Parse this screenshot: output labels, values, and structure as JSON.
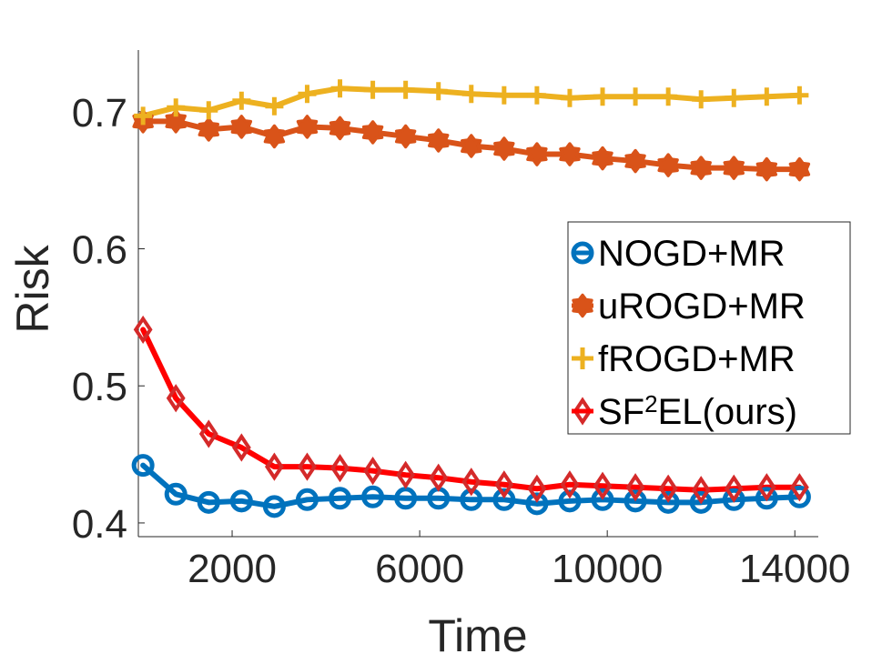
{
  "chart_data": {
    "type": "line",
    "title": "",
    "xlabel": "Time",
    "ylabel": "Risk",
    "xlim": [
      0,
      14500
    ],
    "ylim": [
      0.39,
      0.745
    ],
    "xticks": [
      2000,
      6000,
      10000,
      14000
    ],
    "xtick_labels": [
      "2000",
      "6000",
      "10000",
      "14000"
    ],
    "yticks": [
      0.4,
      0.5,
      0.6,
      0.7
    ],
    "ytick_labels": [
      "0.4",
      "0.5",
      "0.6",
      "0.7"
    ],
    "grid": false,
    "legend_position": "right",
    "x": [
      100,
      800,
      1500,
      2200,
      2900,
      3600,
      4300,
      5000,
      5700,
      6400,
      7100,
      7800,
      8500,
      9200,
      9900,
      10600,
      11300,
      12000,
      12700,
      13400,
      14100
    ],
    "series": [
      {
        "name": "NOGD+MR",
        "color": "#0072BD",
        "marker": "circle",
        "values": [
          0.442,
          0.421,
          0.415,
          0.416,
          0.412,
          0.417,
          0.418,
          0.419,
          0.418,
          0.418,
          0.417,
          0.417,
          0.414,
          0.416,
          0.417,
          0.416,
          0.415,
          0.415,
          0.417,
          0.418,
          0.419
        ]
      },
      {
        "name": "uROGD+MR",
        "color": "#D95319",
        "marker": "hexagram",
        "values": [
          0.693,
          0.693,
          0.687,
          0.689,
          0.682,
          0.689,
          0.688,
          0.685,
          0.682,
          0.679,
          0.675,
          0.673,
          0.669,
          0.669,
          0.666,
          0.664,
          0.661,
          0.659,
          0.659,
          0.658,
          0.658
        ]
      },
      {
        "name": "fROGD+MR",
        "color": "#EDB120",
        "marker": "plus",
        "values": [
          0.697,
          0.703,
          0.701,
          0.708,
          0.704,
          0.713,
          0.717,
          0.716,
          0.716,
          0.715,
          0.713,
          0.712,
          0.712,
          0.71,
          0.711,
          0.711,
          0.711,
          0.709,
          0.71,
          0.711,
          0.712
        ]
      },
      {
        "name_main": "SF",
        "name_sup": "2",
        "name_rest": "EL(ours)",
        "color": "#FF0000",
        "edge_color": "#D42A2A",
        "marker": "diamond",
        "values": [
          0.541,
          0.491,
          0.465,
          0.455,
          0.441,
          0.441,
          0.44,
          0.438,
          0.435,
          0.433,
          0.43,
          0.428,
          0.425,
          0.428,
          0.427,
          0.426,
          0.425,
          0.424,
          0.425,
          0.426,
          0.426
        ]
      }
    ]
  }
}
